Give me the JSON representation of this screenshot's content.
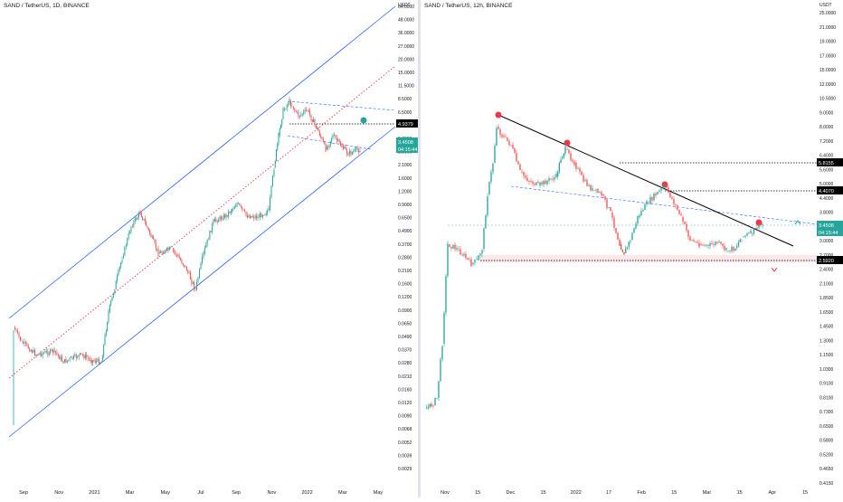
{
  "charts": {
    "left": {
      "title": "SAND / TetherUS, 1D, BINANCE",
      "currency": "USDT",
      "scale": "log",
      "y_ticks": [
        "64.0000",
        "48.0000",
        "36.0000",
        "27.0000",
        "20.0000",
        "15.0000",
        "11.5000",
        "8.5000",
        "6.5000",
        "4.9000",
        "3.7000",
        "2.8000",
        "2.1000",
        "1.6000",
        "1.2000",
        "0.9000",
        "0.6500",
        "0.4900",
        "0.3700",
        "0.2800",
        "0.2100",
        "0.1600",
        "0.1200",
        "0.0900",
        "0.0650",
        "0.0490",
        "0.0370",
        "0.0280",
        "0.0210",
        "0.0160",
        "0.0120",
        "0.0090",
        "0.0068",
        "0.0052",
        "0.0039",
        "0.0029"
      ],
      "x_ticks": [
        "Sep",
        "Nov",
        "2021",
        "Mar",
        "May",
        "Jul",
        "Sep",
        "Nov",
        "2022",
        "Mar",
        "May"
      ],
      "price_labels": [
        {
          "text": "4.9379",
          "bg": "#000000"
        },
        {
          "text": "3.4508",
          "bg": "#26a69a"
        },
        {
          "text": "04:15:44",
          "bg": "#26a69a"
        }
      ]
    },
    "right": {
      "title": "SAND / TetherUS, 12h, BINANCE",
      "currency": "USDT",
      "scale": "log",
      "y_ticks": [
        "25.0000",
        "21.0000",
        "19.0000",
        "17.0000",
        "15.0000",
        "12.0000",
        "10.5000",
        "9.0000",
        "8.0000",
        "7.2000",
        "6.4000",
        "5.6000",
        "5.0000",
        "4.4000",
        "3.8000",
        "3.4000",
        "3.0000",
        "2.7000",
        "2.4000",
        "2.1000",
        "1.8500",
        "1.6500",
        "1.4500",
        "1.3000",
        "1.1500",
        "1.0300",
        "0.9100",
        "0.8100",
        "0.7300",
        "0.6500",
        "0.5800",
        "0.5200",
        "0.4650",
        "0.4150"
      ],
      "x_ticks": [
        "Nov",
        "15",
        "Dec",
        "15",
        "2022",
        "17",
        "Feb",
        "15",
        "Mar",
        "15",
        "Apr",
        "15"
      ],
      "price_labels": [
        {
          "text": "5.8155",
          "bg": "#000000"
        },
        {
          "text": "4.4070",
          "bg": "#000000"
        },
        {
          "text": "3.4508",
          "bg": "#26a69a"
        },
        {
          "text": "04:15:44",
          "bg": "#26a69a"
        },
        {
          "text": "2.5920",
          "bg": "#000000"
        }
      ]
    }
  },
  "chart_data": [
    {
      "type": "candlestick",
      "title": "SAND / TetherUS, 1D, BINANCE",
      "y_scale": "log",
      "ylim": [
        0.0029,
        64.0
      ],
      "x_range": [
        "2020-08",
        "2022-05"
      ],
      "series": [
        {
          "x": [
            "2020-08",
            "2020-09",
            "2020-10",
            "2020-11",
            "2020-12",
            "2021-01",
            "2021-02",
            "2021-03",
            "2021-04",
            "2021-05",
            "2021-06",
            "2021-07",
            "2021-08",
            "2021-09",
            "2021-10",
            "2021-11",
            "2021-12",
            "2022-01",
            "2022-02",
            "2022-03",
            "2022-04"
          ],
          "y": [
            0.055,
            0.045,
            0.042,
            0.045,
            0.04,
            0.07,
            0.3,
            0.8,
            0.6,
            0.35,
            0.25,
            0.55,
            0.85,
            0.65,
            0.8,
            5.5,
            6.5,
            4.5,
            3.8,
            2.8,
            3.45
          ]
        }
      ],
      "lines": [
        {
          "name": "channel top",
          "kind": "trend"
        },
        {
          "name": "channel middle",
          "kind": "dotted"
        },
        {
          "name": "channel bottom",
          "kind": "trend"
        },
        {
          "name": "horizontal level",
          "value": 4.9379
        }
      ]
    },
    {
      "type": "candlestick",
      "title": "SAND / TetherUS, 12h, BINANCE",
      "y_scale": "log",
      "ylim": [
        0.415,
        25.0
      ],
      "x_range": [
        "2021-10-20",
        "2022-04-20"
      ],
      "series": [
        {
          "x": [
            "2021-10-25",
            "2021-11-01",
            "2021-11-05",
            "2021-11-10",
            "2021-11-15",
            "2021-11-20",
            "2021-11-25",
            "2021-12-01",
            "2021-12-10",
            "2021-12-20",
            "2021-12-28",
            "2022-01-05",
            "2022-01-15",
            "2022-01-22",
            "2022-01-30",
            "2022-02-08",
            "2022-02-15",
            "2022-02-25",
            "2022-03-05",
            "2022-03-15",
            "2022-03-25",
            "2022-03-31"
          ],
          "y": [
            0.75,
            0.8,
            2.5,
            3.2,
            4.0,
            6.5,
            8.5,
            6.5,
            5.0,
            5.2,
            7.0,
            5.0,
            4.5,
            2.7,
            3.8,
            5.0,
            4.0,
            2.8,
            2.9,
            2.7,
            3.4,
            3.45
          ]
        }
      ],
      "lines": [
        {
          "name": "descending trendline",
          "kind": "solid"
        },
        {
          "name": "support level",
          "value": 2.592
        },
        {
          "name": "resistance 1",
          "value": 4.407
        },
        {
          "name": "resistance 2",
          "value": 5.8155
        }
      ]
    }
  ]
}
